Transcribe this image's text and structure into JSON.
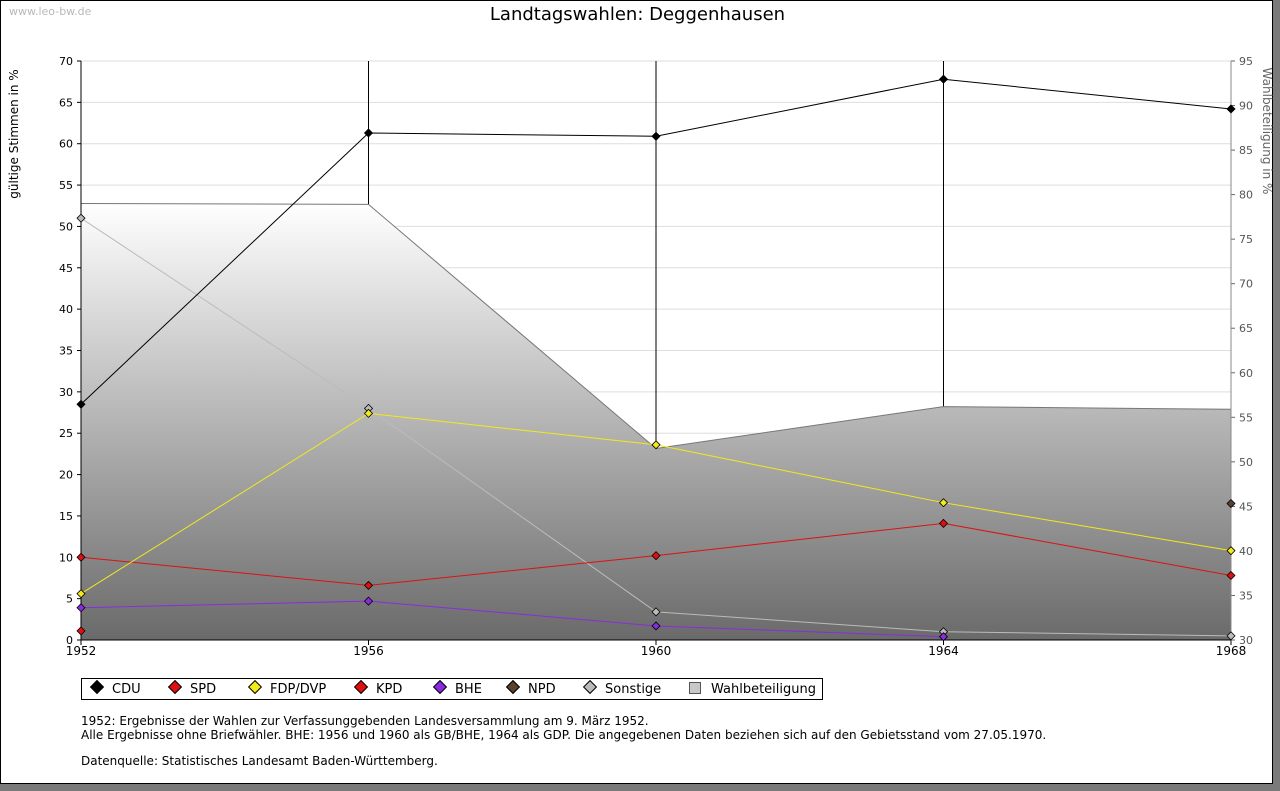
{
  "watermark": "www.leo-bw.de",
  "chart_data": {
    "type": "line",
    "title": "Landtagswahlen: Deggenhausen",
    "ylabel": "gültige Stimmen in %",
    "y2label": "Wahlbeteiligung in %",
    "x": [
      1952,
      1956,
      1960,
      1964,
      1968
    ],
    "x_tick_labels": [
      "1952",
      "1956",
      "1960",
      "1964",
      "1968"
    ],
    "ylim": [
      0,
      70
    ],
    "y_ticks": [
      0,
      5,
      10,
      15,
      20,
      25,
      30,
      35,
      40,
      45,
      50,
      55,
      60,
      65,
      70
    ],
    "y2lim": [
      30,
      95
    ],
    "y2_ticks": [
      30,
      35,
      40,
      45,
      50,
      55,
      60,
      65,
      70,
      75,
      80,
      85,
      90,
      95
    ],
    "grid": true,
    "legend_position": "bottom",
    "series": [
      {
        "name": "CDU",
        "color": "#000000",
        "values": [
          28.5,
          61.3,
          60.9,
          67.8,
          64.2
        ]
      },
      {
        "name": "SPD",
        "color": "#dd1111",
        "values": [
          10.0,
          6.6,
          10.2,
          14.1,
          7.8
        ]
      },
      {
        "name": "FDP/DVP",
        "color": "#f2ea1a",
        "values": [
          5.6,
          27.4,
          23.6,
          16.6,
          10.8
        ]
      },
      {
        "name": "KPD",
        "color": "#dd1111",
        "values": [
          1.1,
          null,
          null,
          null,
          null
        ]
      },
      {
        "name": "BHE",
        "color": "#8a2be2",
        "values": [
          3.9,
          4.7,
          1.7,
          0.4,
          null
        ]
      },
      {
        "name": "NPD",
        "color": "#5a4030",
        "values": [
          null,
          null,
          null,
          null,
          16.5
        ]
      },
      {
        "name": "Sonstige",
        "color": "#bbbbbb",
        "values": [
          51.0,
          28.0,
          3.4,
          1.0,
          0.5
        ]
      },
      {
        "name": "Wahlbeteiligung",
        "color": "#c8c8c8",
        "axis": "right",
        "type": "area",
        "values": [
          79.0,
          78.9,
          51.5,
          56.2,
          55.9
        ]
      }
    ]
  },
  "notes": {
    "line1": "1952: Ergebnisse der Wahlen zur Verfassunggebenden Landesversammlung am 9. März 1952.",
    "line2": "Alle Ergebnisse ohne Briefwähler. BHE: 1956 und 1960 als GB/BHE, 1964 als GDP. Die angegebenen Daten beziehen sich auf den Gebietsstand vom 27.05.1970.",
    "line3": "Datenquelle: Statistisches Landesamt Baden-Württemberg."
  }
}
